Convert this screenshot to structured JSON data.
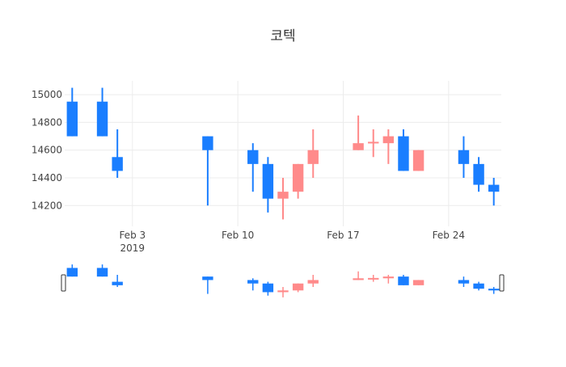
{
  "chart_data": {
    "type": "candlestick",
    "title": "코텍",
    "xlabel": "",
    "ylabel": "",
    "grid": true,
    "rangeslider": true,
    "colors": {
      "increasing": "#ff8a8a",
      "decreasing": "#1a7eff",
      "grid": "#ececec",
      "text": "#444444"
    },
    "x_tick_labels": [
      {
        "date": "2019-02-03",
        "label": "Feb 3",
        "sublabel": "2019"
      },
      {
        "date": "2019-02-10",
        "label": "Feb 10",
        "sublabel": ""
      },
      {
        "date": "2019-02-17",
        "label": "Feb 17",
        "sublabel": ""
      },
      {
        "date": "2019-02-24",
        "label": "Feb 24",
        "sublabel": ""
      }
    ],
    "y_ticks": [
      14200,
      14400,
      14600,
      14800,
      15000
    ],
    "xlim": [
      "2019-01-29T12:00",
      "2019-02-27T12:00"
    ],
    "ylim": [
      14050,
      15100
    ],
    "candles": [
      {
        "date": "2019-01-30",
        "open": 14950,
        "high": 15050,
        "low": 14700,
        "close": 14700
      },
      {
        "date": "2019-02-01",
        "open": 14950,
        "high": 15050,
        "low": 14700,
        "close": 14700
      },
      {
        "date": "2019-02-02",
        "open": 14550,
        "high": 14750,
        "low": 14400,
        "close": 14450
      },
      {
        "date": "2019-02-08",
        "open": 14700,
        "high": 14700,
        "low": 14200,
        "close": 14600
      },
      {
        "date": "2019-02-11",
        "open": 14600,
        "high": 14650,
        "low": 14300,
        "close": 14500
      },
      {
        "date": "2019-02-12",
        "open": 14500,
        "high": 14550,
        "low": 14150,
        "close": 14250
      },
      {
        "date": "2019-02-13",
        "open": 14250,
        "high": 14400,
        "low": 14100,
        "close": 14300
      },
      {
        "date": "2019-02-14",
        "open": 14300,
        "high": 14500,
        "low": 14250,
        "close": 14500
      },
      {
        "date": "2019-02-15",
        "open": 14500,
        "high": 14750,
        "low": 14400,
        "close": 14600
      },
      {
        "date": "2019-02-18",
        "open": 14600,
        "high": 14850,
        "low": 14600,
        "close": 14650
      },
      {
        "date": "2019-02-19",
        "open": 14650,
        "high": 14750,
        "low": 14550,
        "close": 14660
      },
      {
        "date": "2019-02-20",
        "open": 14650,
        "high": 14750,
        "low": 14500,
        "close": 14700
      },
      {
        "date": "2019-02-21",
        "open": 14700,
        "high": 14750,
        "low": 14450,
        "close": 14450
      },
      {
        "date": "2019-02-22",
        "open": 14450,
        "high": 14600,
        "low": 14450,
        "close": 14600
      },
      {
        "date": "2019-02-25",
        "open": 14600,
        "high": 14700,
        "low": 14400,
        "close": 14500
      },
      {
        "date": "2019-02-26",
        "open": 14500,
        "high": 14550,
        "low": 14300,
        "close": 14350
      },
      {
        "date": "2019-02-27",
        "open": 14350,
        "high": 14400,
        "low": 14200,
        "close": 14300
      }
    ]
  }
}
